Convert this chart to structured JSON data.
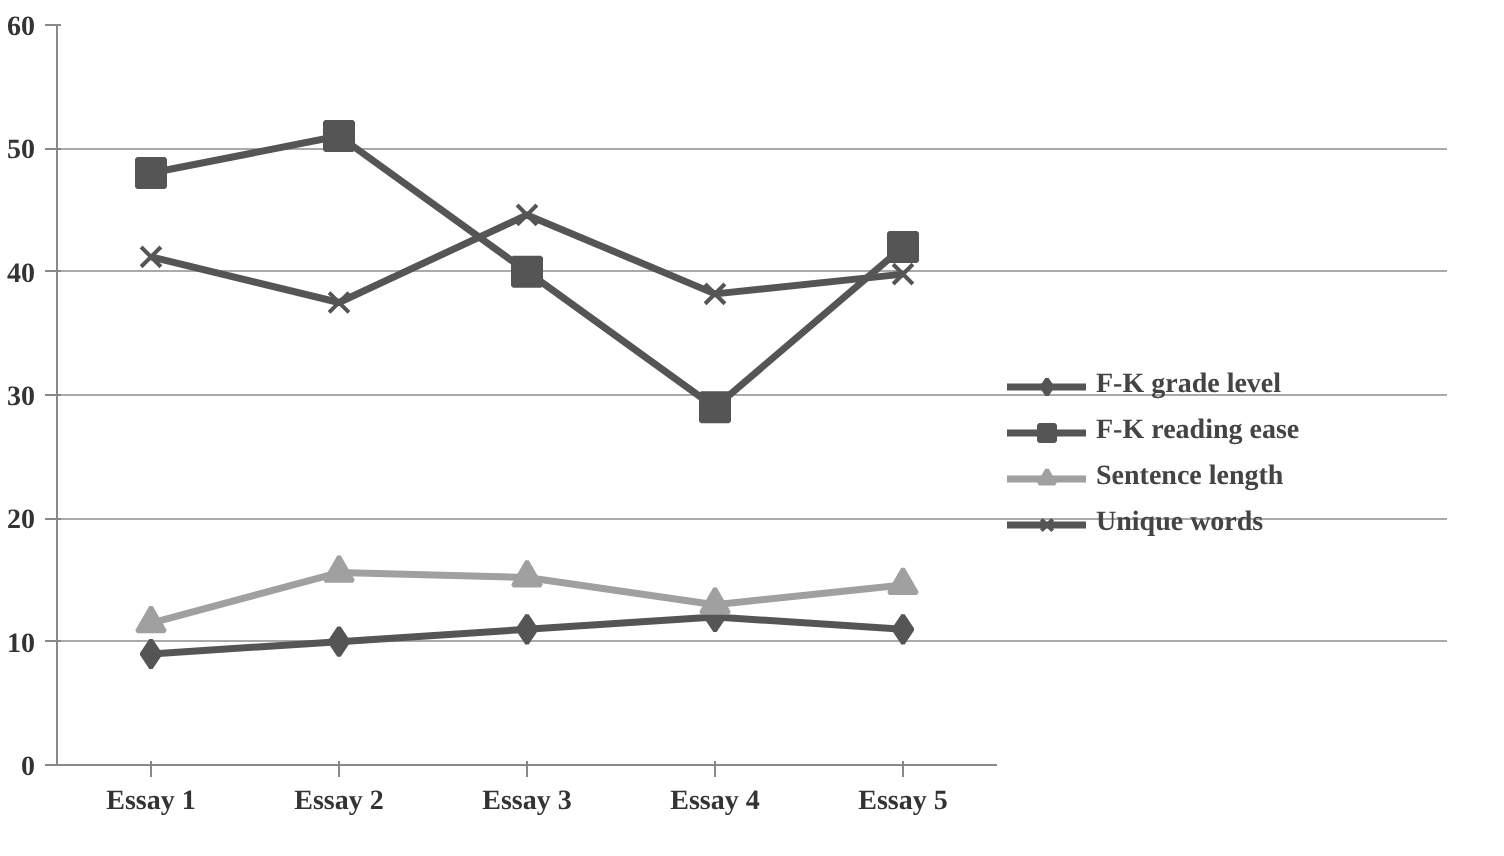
{
  "chart_data": {
    "type": "line",
    "categories": [
      "Essay 1",
      "Essay 2",
      "Essay 3",
      "Essay 4",
      "Essay 5"
    ],
    "series": [
      {
        "name": "F-K grade level",
        "color": "#555555",
        "marker": "diamond",
        "values": [
          9,
          10,
          11,
          12,
          11
        ]
      },
      {
        "name": "F-K reading ease",
        "color": "#555555",
        "marker": "square",
        "values": [
          48,
          51,
          40,
          29,
          42
        ]
      },
      {
        "name": "Sentence length",
        "color": "#a0a0a0",
        "marker": "triangle",
        "values": [
          11.5,
          15.6,
          15.2,
          13,
          14.6
        ]
      },
      {
        "name": "Unique words",
        "color": "#555555",
        "marker": "cross",
        "values": [
          41.2,
          37.5,
          44.6,
          38.2,
          39.8
        ]
      }
    ],
    "ylim": [
      0,
      60
    ],
    "yticks": [
      0,
      10,
      20,
      30,
      40,
      50,
      60
    ],
    "grid": "y",
    "legend": "right",
    "line_style": "solid"
  }
}
